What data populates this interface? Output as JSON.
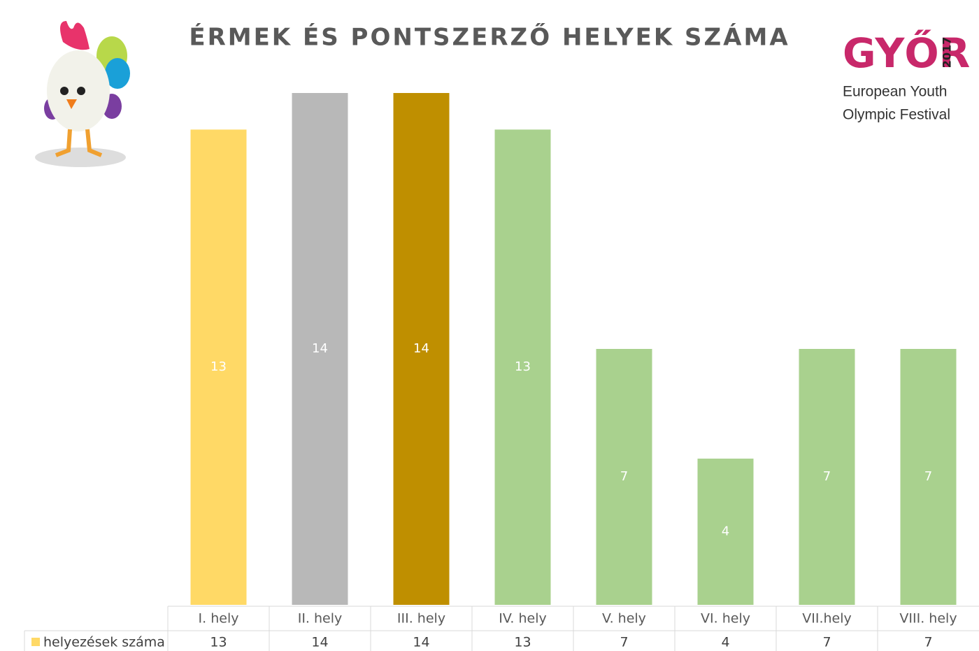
{
  "chart_data": {
    "type": "bar",
    "title": "ÉRMEK ÉS PONTSZERZŐ HELYEK SZÁMA",
    "categories": [
      "I. hely",
      "II. hely",
      "III. hely",
      "IV. hely",
      "V. hely",
      "VI. hely",
      "VII.hely",
      "VIII. hely"
    ],
    "series": [
      {
        "name": "helyezések száma",
        "values": [
          13,
          14,
          14,
          13,
          7,
          4,
          7,
          7
        ],
        "colors": [
          "#ffd966",
          "#b8b8b8",
          "#bf8f00",
          "#a9d18e",
          "#a9d18e",
          "#a9d18e",
          "#a9d18e",
          "#a9d18e"
        ]
      }
    ],
    "ylim": [
      0,
      14
    ]
  },
  "logo": {
    "name": "GYŐR",
    "year": "2017",
    "line1": "European Youth",
    "line2": "Olympic Festival"
  }
}
